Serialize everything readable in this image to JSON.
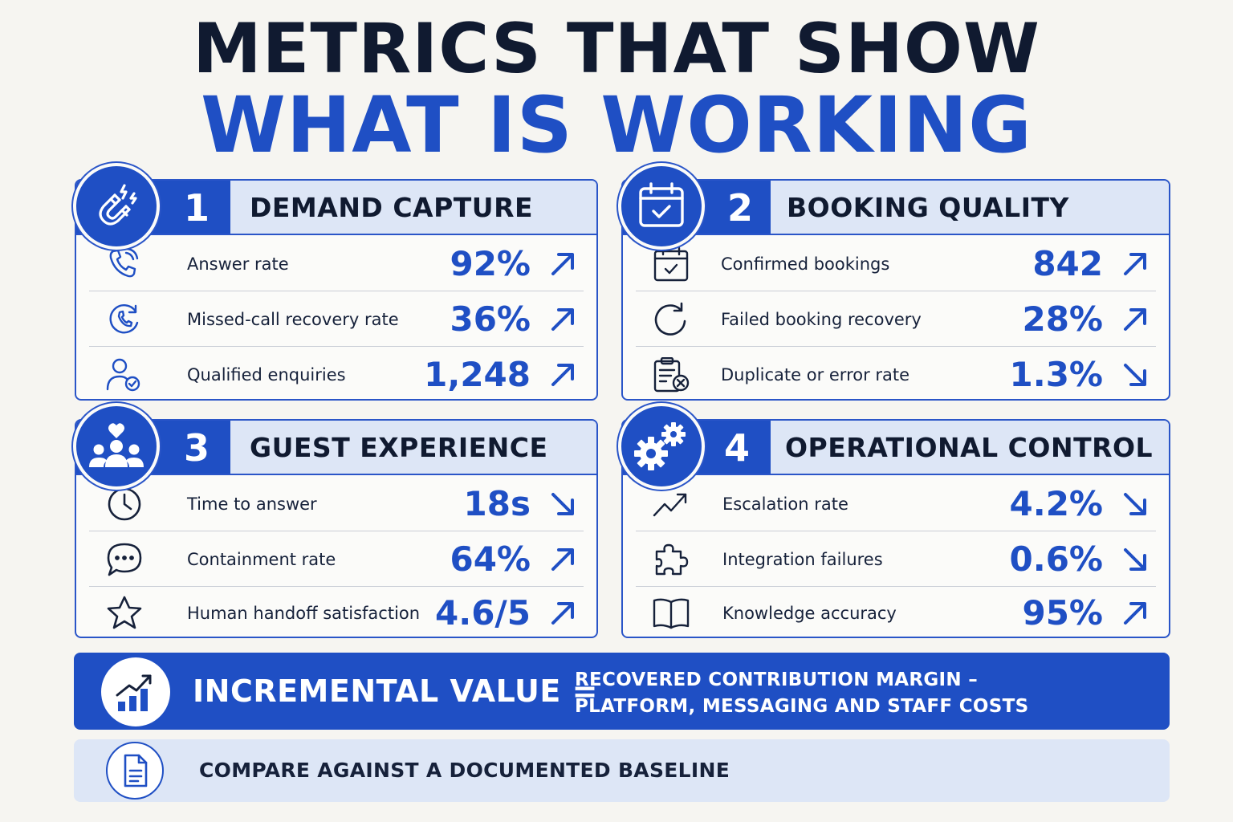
{
  "title": {
    "line1": "METRICS THAT SHOW",
    "line2": "WHAT IS WORKING"
  },
  "sections": [
    {
      "number": "1",
      "title": "DEMAND CAPTURE",
      "icon": "magnet-icon",
      "metrics": [
        {
          "icon": "phone-icon",
          "label": "Answer rate",
          "value": "92%",
          "trend": "up"
        },
        {
          "icon": "phone-recovery-icon",
          "label": "Missed-call recovery rate",
          "value": "36%",
          "trend": "up"
        },
        {
          "icon": "user-check-icon",
          "label": "Qualified enquiries",
          "value": "1,248",
          "trend": "up"
        }
      ]
    },
    {
      "number": "2",
      "title": "BOOKING QUALITY",
      "icon": "calendar-check-icon",
      "metrics": [
        {
          "icon": "calendar-check-icon",
          "label": "Confirmed bookings",
          "value": "842",
          "trend": "up"
        },
        {
          "icon": "refresh-icon",
          "label": "Failed booking recovery",
          "value": "28%",
          "trend": "up"
        },
        {
          "icon": "clipboard-error-icon",
          "label": "Duplicate or error rate",
          "value": "1.3%",
          "trend": "down"
        }
      ]
    },
    {
      "number": "3",
      "title": "GUEST EXPERIENCE",
      "icon": "people-heart-icon",
      "metrics": [
        {
          "icon": "clock-icon",
          "label": "Time to answer",
          "value": "18s",
          "trend": "down"
        },
        {
          "icon": "chat-icon",
          "label": "Containment rate",
          "value": "64%",
          "trend": "up"
        },
        {
          "icon": "star-icon",
          "label": "Human handoff satisfaction",
          "value": "4.6/5",
          "trend": "up"
        }
      ]
    },
    {
      "number": "4",
      "title": "OPERATIONAL CONTROL",
      "icon": "gears-icon",
      "metrics": [
        {
          "icon": "trend-line-icon",
          "label": "Escalation rate",
          "value": "4.2%",
          "trend": "down"
        },
        {
          "icon": "puzzle-icon",
          "label": "Integration failures",
          "value": "0.6%",
          "trend": "down"
        },
        {
          "icon": "book-icon",
          "label": "Knowledge accuracy",
          "value": "95%",
          "trend": "up"
        }
      ]
    }
  ],
  "banner": {
    "icon": "bar-chart-growth-icon",
    "main": "INCREMENTAL VALUE =",
    "sub_line1": "RECOVERED CONTRIBUTION MARGIN –",
    "sub_line2": "PLATFORM, MESSAGING AND STAFF COSTS"
  },
  "baseline": {
    "icon": "document-icon",
    "text": "COMPARE AGAINST A DOCUMENTED BASELINE"
  },
  "colors": {
    "accent": "#1f4fc4",
    "header_bg": "#dde6f6",
    "text_dark": "#101a30",
    "background": "#f6f5f1"
  }
}
